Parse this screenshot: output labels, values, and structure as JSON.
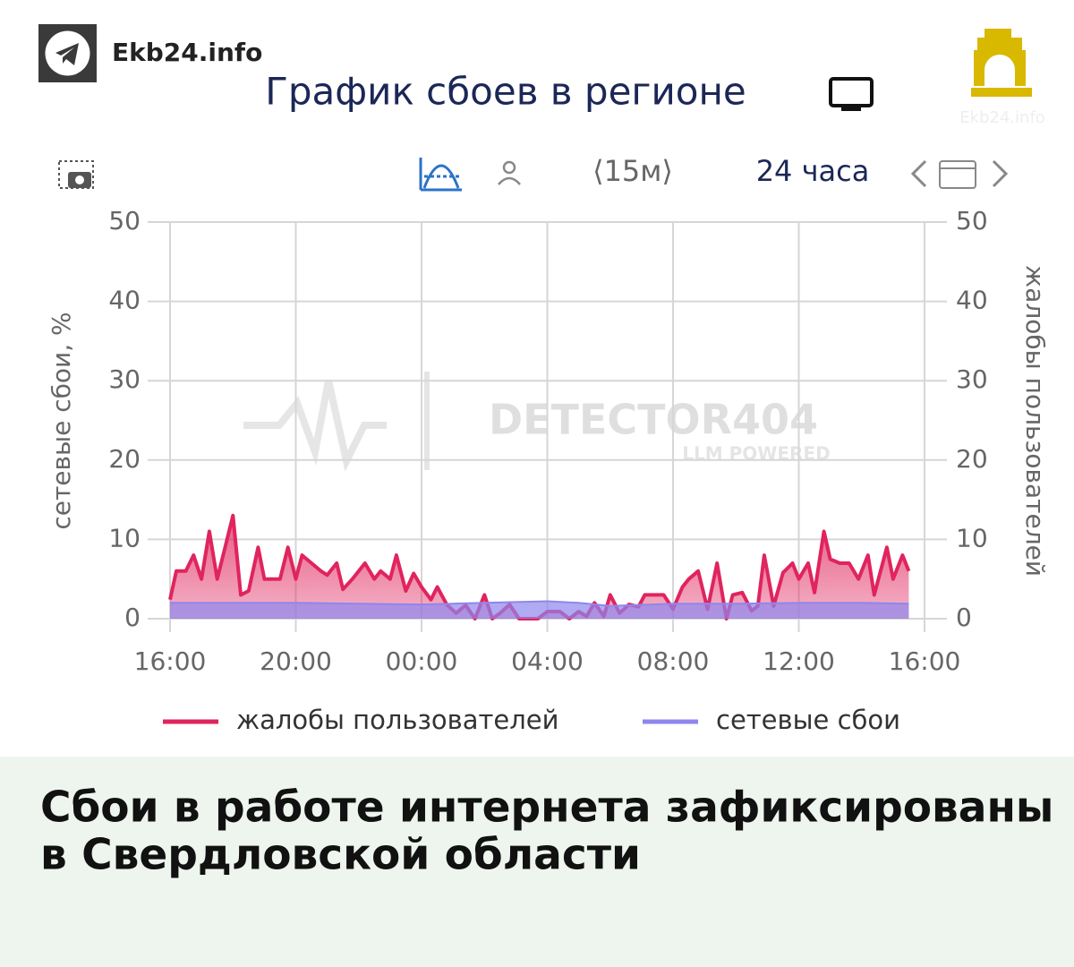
{
  "brand": "Ekb24.info",
  "logo_caption": "Ekb24.info",
  "toolbar": {
    "interval": "⟨15м⟩",
    "period": "24 часа"
  },
  "watermark": {
    "title": "DETECTOR404",
    "subtitle": "LLM POWERED"
  },
  "headline": [
    "Сбои в работе интернета зафиксированы",
    "в Свердловской области"
  ],
  "chart_data": {
    "type": "area",
    "title": "График сбоев в регионе",
    "ylabel": "сетевые сбои, %",
    "y2label": "жалобы пользователей",
    "xlim": [
      0,
      24
    ],
    "xticks": [
      {
        "value": 0,
        "label": "16:00"
      },
      {
        "value": 4,
        "label": "20:00"
      },
      {
        "value": 8,
        "label": "00:00"
      },
      {
        "value": 12,
        "label": "04:00"
      },
      {
        "value": 16,
        "label": "08:00"
      },
      {
        "value": 20,
        "label": "12:00"
      },
      {
        "value": 24,
        "label": "16:00"
      }
    ],
    "ylim": [
      0,
      50
    ],
    "yticks": [
      0,
      10,
      20,
      30,
      40,
      50
    ],
    "y2lim": [
      0,
      50
    ],
    "y2ticks": [
      0,
      10,
      20,
      30,
      40,
      50
    ],
    "grid": true,
    "series": [
      {
        "name": "жалобы пользователей",
        "color": "#e0245e",
        "axis": "y2",
        "x": [
          0,
          0.2,
          0.5,
          0.75,
          1,
          1.25,
          1.5,
          1.75,
          2,
          2.25,
          2.5,
          2.8,
          3,
          3.3,
          3.5,
          3.75,
          4,
          4.2,
          4.5,
          4.8,
          5,
          5.3,
          5.5,
          5.8,
          6.2,
          6.5,
          6.7,
          7,
          7.2,
          7.5,
          7.75,
          8,
          8.3,
          8.5,
          8.8,
          9.1,
          9.4,
          9.7,
          10,
          10.25,
          10.5,
          10.8,
          11.1,
          11.7,
          12,
          12.4,
          12.7,
          13,
          13.25,
          13.5,
          13.8,
          14,
          14.3,
          14.6,
          14.9,
          15.1,
          15.7,
          16,
          16.3,
          16.5,
          16.8,
          17.1,
          17.4,
          17.7,
          17.9,
          18.2,
          18.5,
          18.7,
          18.9,
          19.2,
          19.5,
          19.8,
          20,
          20.3,
          20.5,
          20.8,
          21,
          21.3,
          21.6,
          21.9,
          22.2,
          22.4,
          22.8,
          23,
          23.3,
          23.5
        ],
        "values": [
          2.4,
          6,
          6,
          8,
          5,
          11,
          5,
          9,
          13,
          3,
          3.5,
          9,
          5,
          5,
          5,
          9,
          5,
          8,
          7,
          6,
          5.5,
          7,
          3.7,
          5,
          7,
          5,
          6,
          5,
          8,
          3.5,
          5.7,
          4,
          2.4,
          4,
          1.8,
          0.7,
          1.7,
          0,
          3,
          0,
          0.7,
          1.8,
          0,
          0,
          0.9,
          0.9,
          0,
          0.9,
          0.3,
          2,
          0.3,
          3,
          0.7,
          1.8,
          1.5,
          3,
          3,
          1.2,
          4,
          5,
          6,
          1.2,
          7,
          0,
          3,
          3.3,
          1,
          1.6,
          8,
          1.6,
          5.8,
          7,
          5,
          7,
          3.3,
          11,
          7.5,
          7,
          7,
          5,
          8,
          3,
          9,
          5,
          8,
          6
        ]
      },
      {
        "name": "сетевые сбои",
        "color": "#8f86ee",
        "x": [
          0,
          4,
          8,
          9,
          10,
          11,
          12,
          13,
          14,
          16,
          18,
          20,
          22,
          23.5
        ],
        "values": [
          2,
          2,
          1.8,
          1.9,
          2,
          2.1,
          2.2,
          2,
          1.6,
          1.9,
          1.9,
          2,
          2,
          1.9
        ]
      }
    ]
  }
}
